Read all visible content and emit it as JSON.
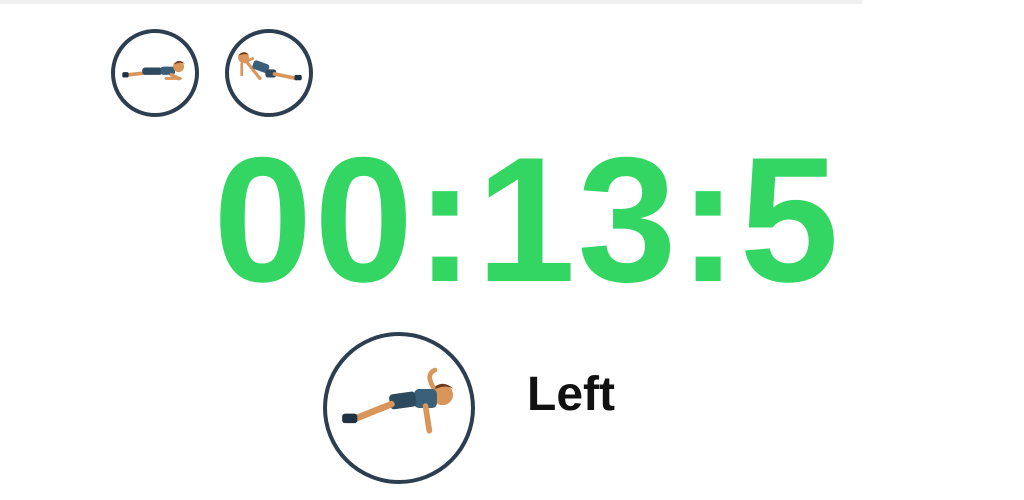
{
  "timer": {
    "display": "00:13:5",
    "color": "#34d663"
  },
  "exercise_queue": [
    {
      "icon": "plank-figure-icon"
    },
    {
      "icon": "side-plank-figure-icon"
    }
  ],
  "current_exercise": {
    "icon": "side-plank-figure-icon",
    "side_label": "Left"
  },
  "colors": {
    "ring": "#2c3e50",
    "background": "#ffffff",
    "label": "#111111"
  }
}
